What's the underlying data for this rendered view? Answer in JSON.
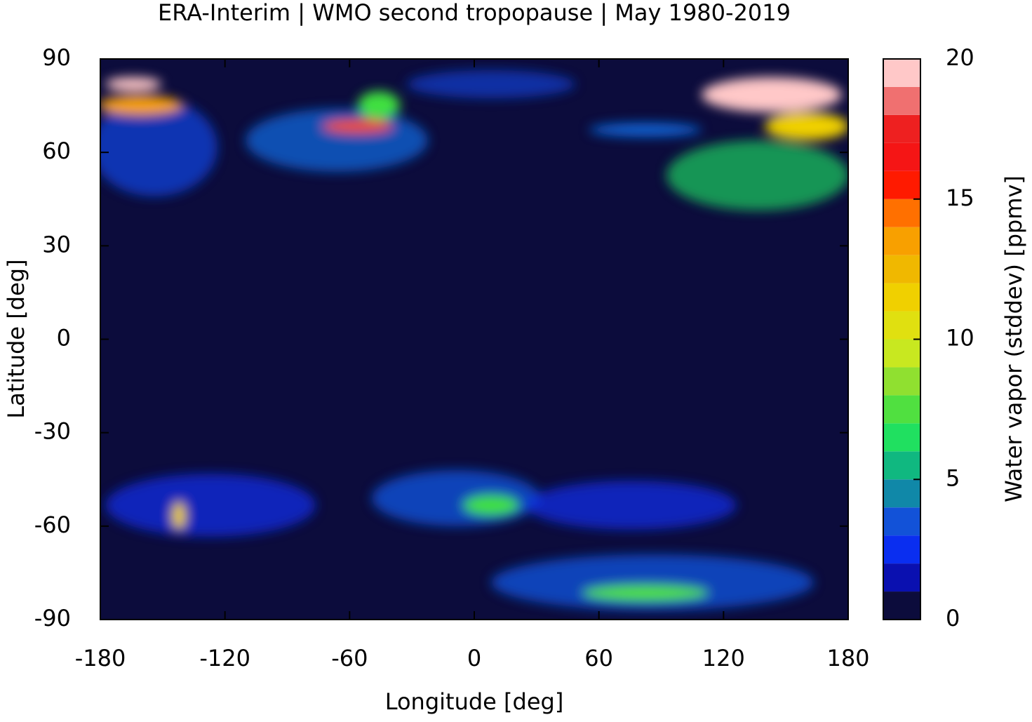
{
  "chart_data": {
    "type": "map",
    "title": "ERA-Interim | WMO second tropopause | May 1980-2019",
    "x_label": "Longitude [deg]",
    "y_label": "Latitude [deg]",
    "xlim": [
      -180,
      180
    ],
    "xticks": [
      -180,
      -120,
      -60,
      0,
      60,
      120,
      180
    ],
    "ylim": [
      -90,
      90
    ],
    "yticks": [
      -90,
      -60,
      -30,
      0,
      30,
      60,
      90
    ],
    "colorbar": {
      "label": "Water vapor (stddev) [ppmv]",
      "bins": [
        0,
        1,
        2,
        3,
        4,
        5,
        6,
        7,
        8,
        9,
        10,
        11,
        12,
        13,
        14,
        15,
        16,
        17,
        18,
        19,
        20
      ],
      "colors": [
        "#0c0c3c",
        "#0a10b0",
        "#0a2ef0",
        "#1252d8",
        "#1088a8",
        "#10b880",
        "#20e060",
        "#50e040",
        "#90e030",
        "#c8e820",
        "#e0e010",
        "#f0d000",
        "#f0b800",
        "#f8a000",
        "#ff7000",
        "#ff1a00",
        "#f51515",
        "#ee2020",
        "#f07070",
        "#ffc8c8"
      ],
      "ticks": [
        0,
        5,
        10,
        15,
        20
      ]
    }
  }
}
